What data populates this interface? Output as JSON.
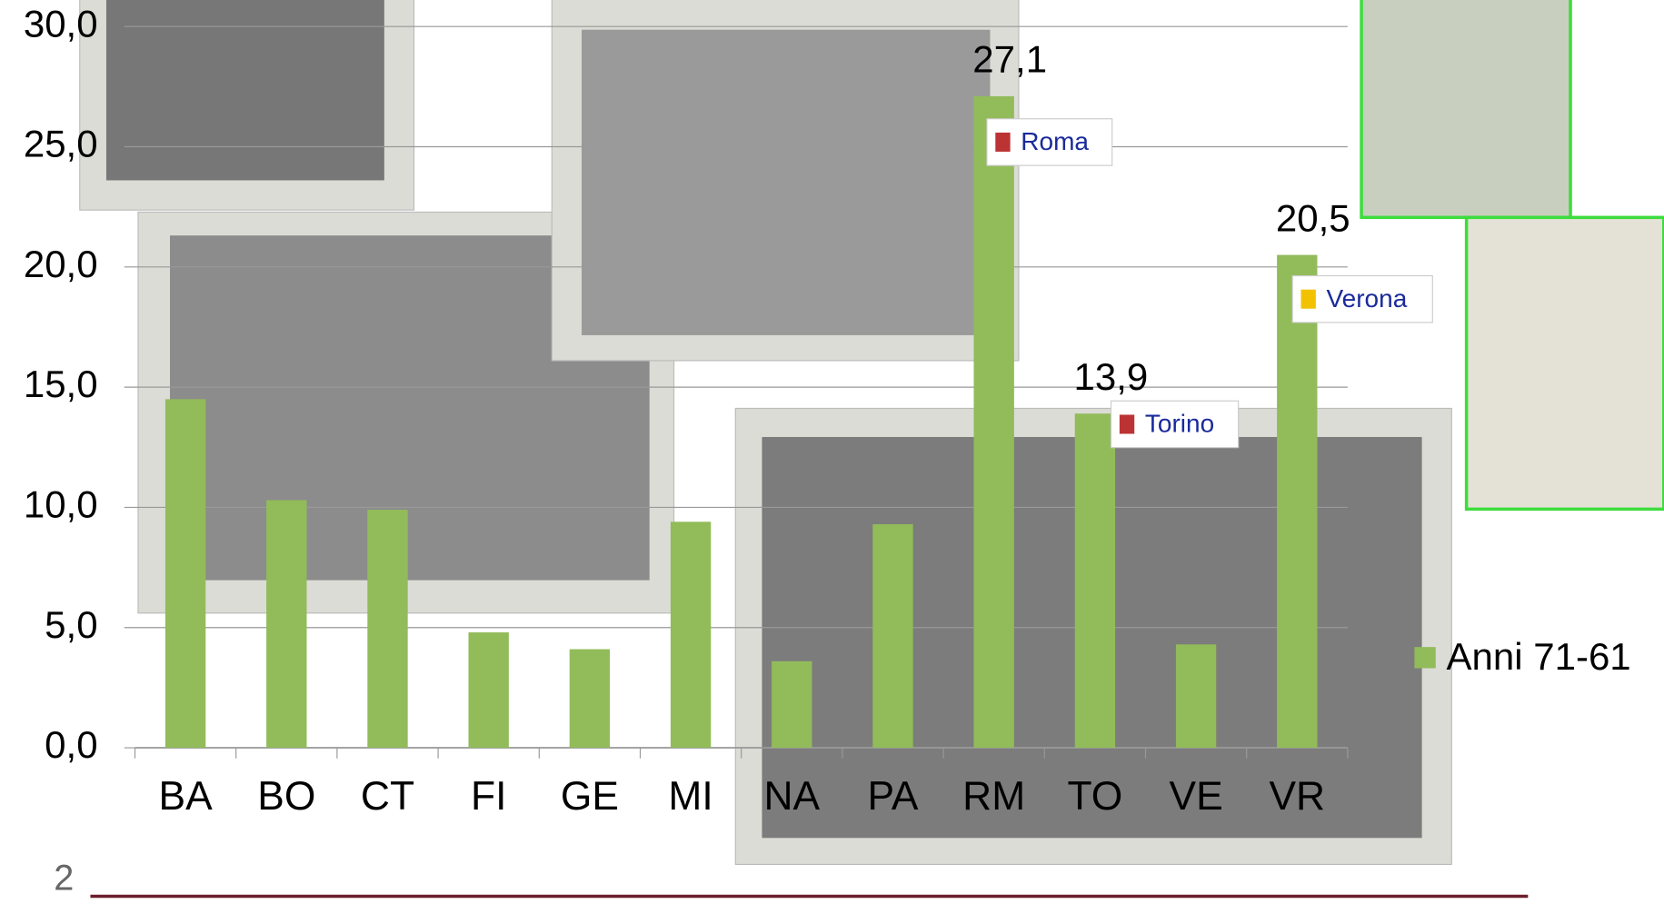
{
  "page_number": "2",
  "chart_data": {
    "type": "bar",
    "categories": [
      "BA",
      "BO",
      "CT",
      "FI",
      "GE",
      "MI",
      "NA",
      "PA",
      "RM",
      "TO",
      "VE",
      "VR"
    ],
    "series": [
      {
        "name": "Anni 71-61",
        "color": "#92bb5a",
        "values": [
          14.5,
          10.3,
          9.9,
          4.8,
          4.1,
          9.4,
          3.6,
          9.3,
          27.1,
          13.9,
          4.3,
          20.5
        ],
        "value_labels": [
          null,
          null,
          null,
          null,
          null,
          null,
          null,
          null,
          "27,1",
          "13,9",
          null,
          "20,5"
        ]
      }
    ],
    "ylim": [
      0,
      30
    ],
    "yticks": [
      {
        "value": 0,
        "label": "0,0"
      },
      {
        "value": 5,
        "label": "5,0"
      },
      {
        "value": 10,
        "label": "10,0"
      },
      {
        "value": 15,
        "label": "15,0"
      },
      {
        "value": 20,
        "label": "20,0"
      },
      {
        "value": 25,
        "label": "25,0"
      },
      {
        "value": 30,
        "label": "30,0"
      }
    ],
    "grid": true,
    "legend": "right",
    "annotations": [
      "Roma",
      "Torino",
      "Verona"
    ]
  }
}
